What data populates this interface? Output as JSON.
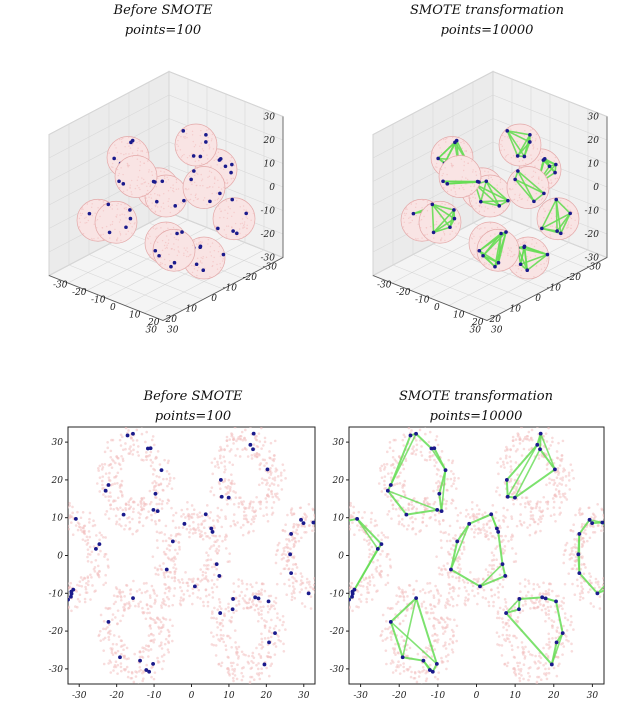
{
  "chart_data": [
    {
      "type": "scatter",
      "projection": "3d",
      "title": "Before SMOTE",
      "subtitle": "points=100",
      "z_ticks": [
        "30",
        "20",
        "10",
        "0",
        "-10",
        "-20",
        "-30"
      ],
      "x_ticks": [
        "-30",
        "-20",
        "-10",
        "0",
        "10",
        "20",
        "30"
      ],
      "y_ticks": [
        "-30",
        "-20",
        "-10",
        "0",
        "10",
        "20",
        "30"
      ],
      "xlim": [
        -30,
        30
      ],
      "ylim": [
        -30,
        30
      ],
      "zlim": [
        -30,
        30
      ],
      "grid": true,
      "colors": {
        "background": "#f2c0c0",
        "minority": "#1a1a8c",
        "synthetic": "#66dd55"
      },
      "spheres": [
        [
          0,
          0,
          -20
        ],
        [
          15,
          -20,
          -10
        ],
        [
          -15,
          -20,
          -10
        ],
        [
          0,
          20,
          -20
        ],
        [
          15,
          20,
          -10
        ],
        [
          -15,
          20,
          -10
        ],
        [
          0,
          0,
          0
        ],
        [
          25,
          0,
          0
        ],
        [
          -25,
          0,
          0
        ],
        [
          0,
          -20,
          10
        ],
        [
          15,
          0,
          15
        ],
        [
          -15,
          0,
          15
        ],
        [
          0,
          20,
          10
        ]
      ]
    },
    {
      "type": "scatter",
      "projection": "3d",
      "title": "SMOTE transformation",
      "subtitle": "points=10000",
      "z_ticks": [
        "30",
        "20",
        "10",
        "0",
        "-10",
        "-20",
        "-30"
      ],
      "x_ticks": [
        "-30",
        "-20",
        "-10",
        "0",
        "10",
        "20",
        "30"
      ],
      "y_ticks": [
        "-30",
        "-20",
        "-10",
        "0",
        "10",
        "20",
        "30"
      ],
      "xlim": [
        -30,
        30
      ],
      "ylim": [
        -30,
        30
      ],
      "zlim": [
        -30,
        30
      ],
      "grid": true,
      "colors": {
        "background": "#f2c0c0",
        "minority": "#1a1a8c",
        "synthetic": "#66dd55"
      },
      "spheres": [
        [
          0,
          0,
          -20
        ],
        [
          15,
          -20,
          -10
        ],
        [
          -15,
          -20,
          -10
        ],
        [
          0,
          20,
          -20
        ],
        [
          15,
          20,
          -10
        ],
        [
          -15,
          20,
          -10
        ],
        [
          0,
          0,
          0
        ],
        [
          25,
          0,
          0
        ],
        [
          -25,
          0,
          0
        ],
        [
          0,
          -20,
          10
        ],
        [
          15,
          0,
          15
        ],
        [
          -15,
          0,
          15
        ],
        [
          0,
          20,
          10
        ]
      ]
    },
    {
      "type": "scatter",
      "title": "Before SMOTE",
      "subtitle": "points=100",
      "x_ticks": [
        "-30",
        "-20",
        "-10",
        "0",
        "10",
        "20",
        "30"
      ],
      "y_ticks": [
        "30",
        "20",
        "10",
        "0",
        "-10",
        "-20",
        "-30"
      ],
      "xlim": [
        -33,
        33
      ],
      "ylim": [
        -34,
        34
      ],
      "colors": {
        "background": "#f2c0c0",
        "minority": "#1a1a8c",
        "synthetic": "#66dd55"
      },
      "rings": [
        [
          -15,
          20
        ],
        [
          15,
          20
        ],
        [
          0,
          0
        ],
        [
          -15,
          -20
        ],
        [
          15,
          -20
        ],
        [
          -32,
          0
        ],
        [
          32,
          0
        ]
      ]
    },
    {
      "type": "scatter",
      "title": "SMOTE transformation",
      "subtitle": "points=10000",
      "x_ticks": [
        "-30",
        "-20",
        "-10",
        "0",
        "10",
        "20",
        "30"
      ],
      "y_ticks": [
        "30",
        "20",
        "10",
        "0",
        "-10",
        "-20",
        "-30"
      ],
      "xlim": [
        -33,
        33
      ],
      "ylim": [
        -34,
        34
      ],
      "colors": {
        "background": "#f2c0c0",
        "minority": "#1a1a8c",
        "synthetic": "#66dd55"
      },
      "rings": [
        [
          -15,
          20
        ],
        [
          15,
          20
        ],
        [
          0,
          0
        ],
        [
          -15,
          -20
        ],
        [
          15,
          -20
        ],
        [
          -32,
          0
        ],
        [
          32,
          0
        ]
      ]
    }
  ]
}
